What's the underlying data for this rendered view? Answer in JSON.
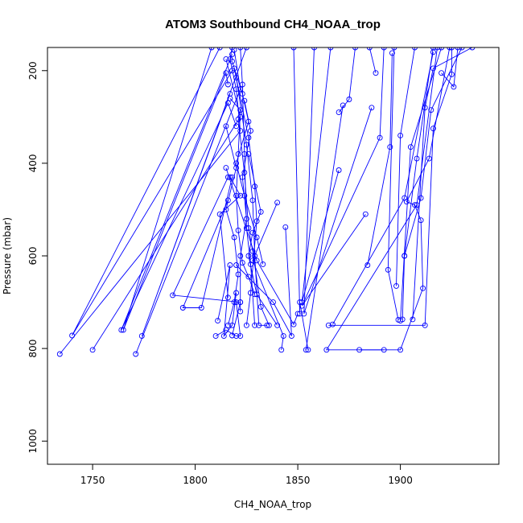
{
  "chart_data": {
    "type": "scatter",
    "title": "ATOM3 Southbound CH4_NOAA_trop",
    "xlabel": "CH4_NOAA_trop",
    "ylabel": "Pressure (mbar)",
    "xlim": [
      1728,
      1948
    ],
    "ylim": [
      1050,
      150
    ],
    "y_reversed": true,
    "x_ticks": [
      1750,
      1800,
      1850,
      1900
    ],
    "y_ticks": [
      200,
      400,
      600,
      800,
      1000
    ],
    "grid": false,
    "legend": "none",
    "line_color": "#0000ff",
    "marker": "open-circle",
    "series": [
      {
        "values": [
          [
            1818,
            150
          ],
          [
            1817,
            175
          ],
          [
            1820,
            240
          ],
          [
            1822,
            330
          ],
          [
            1734,
            812
          ]
        ]
      },
      {
        "values": [
          [
            1812,
            150
          ],
          [
            1740,
            772
          ],
          [
            1818,
            200
          ]
        ]
      },
      {
        "values": [
          [
            1815,
            175
          ],
          [
            1822,
            300
          ],
          [
            1750,
            803
          ]
        ]
      },
      {
        "values": [
          [
            1808,
            150
          ],
          [
            1765,
            760
          ],
          [
            1815,
            205
          ],
          [
            1816,
            230
          ]
        ]
      },
      {
        "values": [
          [
            1818,
            165
          ],
          [
            1764,
            760
          ],
          [
            1816,
            270
          ],
          [
            1820,
            320
          ]
        ]
      },
      {
        "values": [
          [
            1819,
            155
          ],
          [
            1822,
            240
          ],
          [
            1771,
            812
          ]
        ]
      },
      {
        "values": [
          [
            1825,
            150
          ],
          [
            1774,
            773
          ],
          [
            1817,
            250
          ]
        ]
      },
      {
        "values": [
          [
            1816,
            430
          ],
          [
            1789,
            685
          ],
          [
            1822,
            700
          ],
          [
            1822,
            720
          ]
        ]
      },
      {
        "values": [
          [
            1816,
            480
          ],
          [
            1794,
            712
          ],
          [
            1803,
            712
          ],
          [
            1818,
            430
          ]
        ]
      },
      {
        "values": [
          [
            1810,
            773
          ],
          [
            1815,
            760
          ],
          [
            1820,
            773
          ],
          [
            1822,
            773
          ],
          [
            1820,
            700
          ]
        ]
      },
      {
        "values": [
          [
            1811,
            740
          ],
          [
            1817,
            620
          ],
          [
            1814,
            773
          ],
          [
            1818,
            750
          ],
          [
            1820,
            680
          ]
        ]
      },
      {
        "values": [
          [
            1816,
            690
          ],
          [
            1812,
            510
          ],
          [
            1822,
            470
          ],
          [
            1817,
            430
          ]
        ]
      },
      {
        "values": [
          [
            1818,
            180
          ],
          [
            1823,
            250
          ],
          [
            1826,
            310
          ],
          [
            1820,
            400
          ],
          [
            1824,
            470
          ],
          [
            1830,
            560
          ],
          [
            1833,
            618
          ]
        ]
      },
      {
        "values": [
          [
            1819,
            195
          ],
          [
            1826,
            345
          ],
          [
            1829,
            450
          ],
          [
            1830,
            525
          ],
          [
            1827,
            680
          ],
          [
            1825,
            750
          ]
        ]
      },
      {
        "values": [
          [
            1820,
            215
          ],
          [
            1825,
            360
          ],
          [
            1828,
            480
          ],
          [
            1829,
            600
          ],
          [
            1831,
            750
          ],
          [
            1835,
            750
          ]
        ]
      },
      {
        "values": [
          [
            1817,
            260
          ],
          [
            1822,
            285
          ],
          [
            1821,
            380
          ],
          [
            1820,
            470
          ],
          [
            1821,
            545
          ],
          [
            1823,
            615
          ],
          [
            1826,
            645
          ],
          [
            1829,
            683
          ]
        ]
      },
      {
        "values": [
          [
            1821,
            305
          ],
          [
            1824,
            420
          ],
          [
            1826,
            540
          ],
          [
            1828,
            590
          ],
          [
            1832,
            710
          ],
          [
            1836,
            750
          ]
        ]
      },
      {
        "values": [
          [
            1824,
            265
          ],
          [
            1827,
            330
          ],
          [
            1823,
            430
          ],
          [
            1825,
            520
          ],
          [
            1822,
            600
          ],
          [
            1822,
            700
          ],
          [
            1818,
            772
          ]
        ]
      },
      {
        "values": [
          [
            1822,
            150
          ],
          [
            1823,
            230
          ],
          [
            1824,
            380
          ],
          [
            1825,
            540
          ],
          [
            1827,
            618
          ],
          [
            1829,
            750
          ]
        ]
      },
      {
        "values": [
          [
            1815,
            320
          ],
          [
            1820,
            410
          ],
          [
            1815,
            500
          ],
          [
            1819,
            560
          ],
          [
            1821,
            640
          ],
          [
            1819,
            700
          ],
          [
            1816,
            750
          ]
        ]
      },
      {
        "values": [
          [
            1826,
            380
          ],
          [
            1832,
            505
          ],
          [
            1828,
            550
          ],
          [
            1826,
            600
          ],
          [
            1830,
            683
          ],
          [
            1840,
            750
          ]
        ]
      },
      {
        "values": [
          [
            1840,
            485
          ],
          [
            1828,
            610
          ],
          [
            1843,
            773
          ],
          [
            1842,
            803
          ]
        ]
      },
      {
        "values": [
          [
            1844,
            538
          ],
          [
            1847,
            773
          ],
          [
            1838,
            700
          ],
          [
            1820,
            620
          ]
        ]
      },
      {
        "values": [
          [
            1815,
            410
          ],
          [
            1830,
            610
          ],
          [
            1848,
            748
          ],
          [
            1850,
            725
          ]
        ]
      },
      {
        "values": [
          [
            1848,
            150
          ],
          [
            1851,
            725
          ],
          [
            1851,
            700
          ],
          [
            1855,
            803
          ]
        ]
      },
      {
        "values": [
          [
            1858,
            150
          ],
          [
            1853,
            725
          ],
          [
            1886,
            280
          ]
        ]
      },
      {
        "values": [
          [
            1866,
            150
          ],
          [
            1852,
            700
          ],
          [
            1870,
            415
          ]
        ]
      },
      {
        "values": [
          [
            1872,
            275
          ],
          [
            1854,
            803
          ]
        ]
      },
      {
        "values": [
          [
            1878,
            150
          ],
          [
            1875,
            262
          ],
          [
            1870,
            290
          ]
        ]
      },
      {
        "values": [
          [
            1885,
            150
          ],
          [
            1888,
            205
          ]
        ]
      },
      {
        "values": [
          [
            1892,
            150
          ],
          [
            1890,
            345
          ],
          [
            1852,
            708
          ],
          [
            1883,
            510
          ]
        ]
      },
      {
        "values": [
          [
            1896,
            162
          ],
          [
            1895,
            365
          ],
          [
            1884,
            620
          ]
        ]
      },
      {
        "values": [
          [
            1897,
            150
          ],
          [
            1894,
            630
          ],
          [
            1899,
            738
          ]
        ]
      },
      {
        "values": [
          [
            1907,
            150
          ],
          [
            1900,
            340
          ],
          [
            1898,
            665
          ]
        ]
      },
      {
        "values": [
          [
            1920,
            150
          ],
          [
            1905,
            365
          ],
          [
            1900,
            740
          ]
        ]
      },
      {
        "values": [
          [
            1916,
            150
          ],
          [
            1908,
            390
          ],
          [
            1902,
            600
          ],
          [
            1901,
            737
          ]
        ]
      },
      {
        "values": [
          [
            1924,
            150
          ],
          [
            1914,
            390
          ],
          [
            1903,
            483
          ],
          [
            1907,
            490
          ],
          [
            1910,
            523
          ],
          [
            1911,
            670
          ],
          [
            1900,
            803
          ],
          [
            1880,
            803
          ]
        ]
      },
      {
        "values": [
          [
            1930,
            150
          ],
          [
            1915,
            285
          ],
          [
            1910,
            475
          ],
          [
            1902,
            600
          ]
        ]
      },
      {
        "values": [
          [
            1935,
            150
          ],
          [
            1916,
            195
          ],
          [
            1912,
            280
          ],
          [
            1906,
            737
          ]
        ]
      },
      {
        "values": [
          [
            1928,
            150
          ],
          [
            1926,
            235
          ],
          [
            1920,
            205
          ]
        ]
      },
      {
        "values": [
          [
            1925,
            150
          ],
          [
            1925,
            208
          ],
          [
            1916,
            325
          ],
          [
            1912,
            750
          ],
          [
            1865,
            750
          ]
        ]
      },
      {
        "values": [
          [
            1918,
            150
          ],
          [
            1908,
            490
          ],
          [
            1864,
            803
          ],
          [
            1892,
            803
          ]
        ]
      },
      {
        "values": [
          [
            1916,
            160
          ],
          [
            1902,
            475
          ],
          [
            1867,
            748
          ]
        ]
      }
    ]
  }
}
